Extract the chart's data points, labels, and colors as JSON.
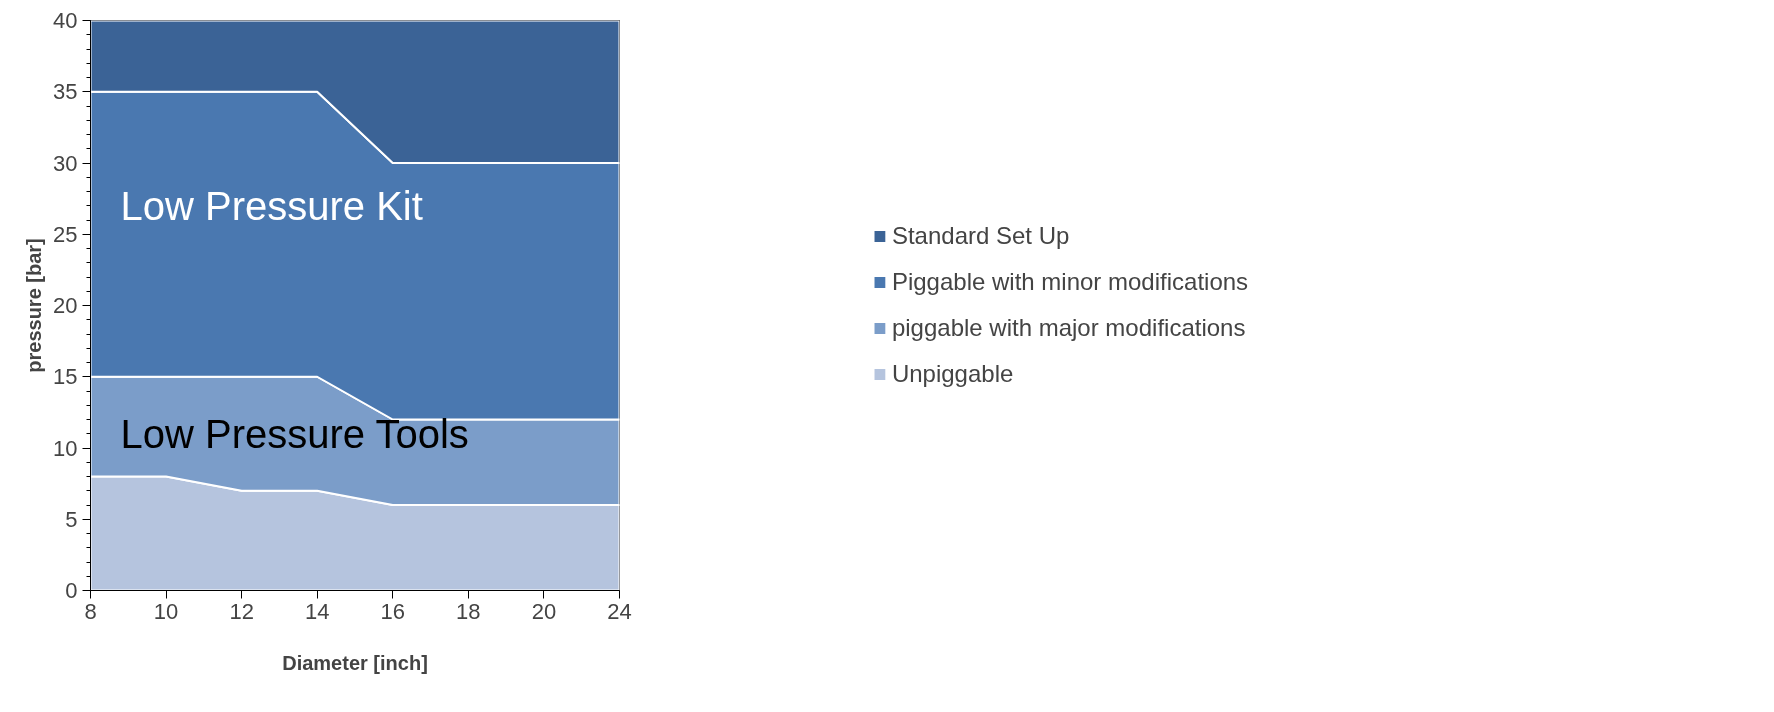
{
  "chart_data": {
    "type": "area",
    "stacked": true,
    "xlabel": "Diameter [inch]",
    "ylabel": "pressure [bar]",
    "categories": [
      "8",
      "10",
      "12",
      "14",
      "16",
      "18",
      "20",
      "24"
    ],
    "series": [
      {
        "name": "Unpiggable",
        "color": "#b5c4de",
        "values": [
          8,
          8,
          7,
          7,
          6,
          6,
          6,
          6
        ]
      },
      {
        "name": "piggable with major modifications",
        "color": "#7b9dc9",
        "values": [
          7,
          7,
          8,
          8,
          6,
          6,
          6,
          6
        ]
      },
      {
        "name": "Piggable with minor modifications",
        "color": "#4a78b0",
        "values": [
          20,
          20,
          20,
          20,
          18,
          18,
          18,
          18
        ]
      },
      {
        "name": "Standard Set Up",
        "color": "#3b6396",
        "values": [
          5,
          5,
          5,
          5,
          10,
          10,
          10,
          10
        ]
      }
    ],
    "ylim": [
      0,
      40
    ],
    "yticks": [
      0,
      5,
      10,
      15,
      20,
      25,
      30,
      35,
      40
    ],
    "grid": false,
    "legend": "right",
    "annotations": [
      {
        "text": "Low Pressure Kit",
        "x": "8",
        "y": 27
      },
      {
        "text": "Low Pressure Tools",
        "x": "8",
        "y": 11
      }
    ]
  }
}
